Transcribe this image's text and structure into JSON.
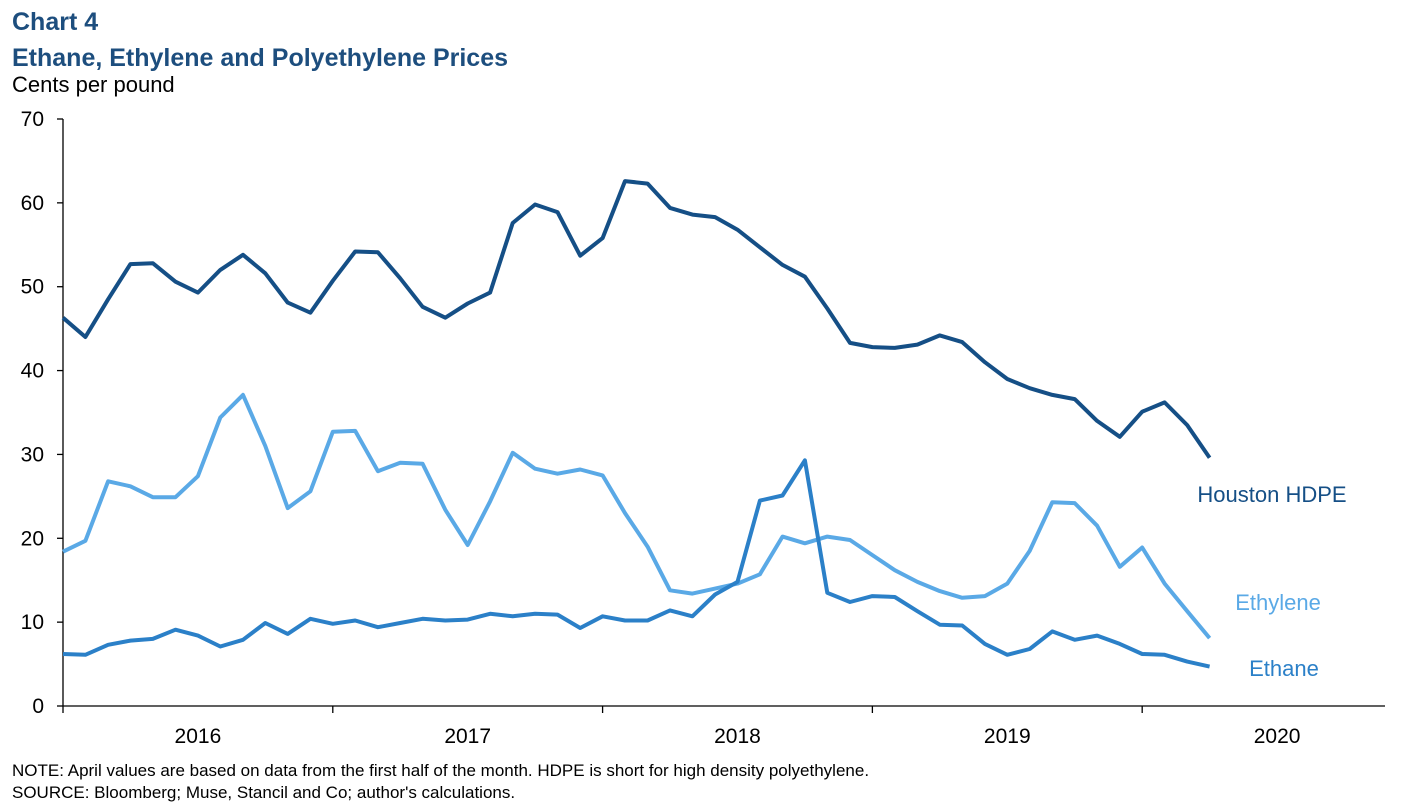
{
  "chart_data": {
    "type": "line",
    "title": "Chart 4",
    "subtitle": "Ethane, Ethylene and Polyethylene Prices",
    "y_label": "Cents per pound",
    "note": "NOTE: April values are based on data from the first half of the month. HDPE is short for high density polyethylene.",
    "source": "SOURCE: Bloomberg; Muse, Stancil and Co; author's calculations.",
    "x": [
      2016,
      2016.083,
      2016.167,
      2016.25,
      2016.333,
      2016.417,
      2016.5,
      2016.583,
      2016.667,
      2016.75,
      2016.833,
      2016.917,
      2017,
      2017.083,
      2017.167,
      2017.25,
      2017.333,
      2017.417,
      2017.5,
      2017.583,
      2017.667,
      2017.75,
      2017.833,
      2017.917,
      2018,
      2018.083,
      2018.167,
      2018.25,
      2018.333,
      2018.417,
      2018.5,
      2018.583,
      2018.667,
      2018.75,
      2018.833,
      2018.917,
      2019,
      2019.083,
      2019.167,
      2019.25,
      2019.333,
      2019.417,
      2019.5,
      2019.583,
      2019.667,
      2019.75,
      2019.833,
      2019.917,
      2020,
      2020.083,
      2020.167,
      2020.25
    ],
    "xlim": [
      2016,
      2020.9
    ],
    "xticks": [
      {
        "value": 2016.5,
        "label": "2016"
      },
      {
        "value": 2017.5,
        "label": "2017"
      },
      {
        "value": 2018.5,
        "label": "2018"
      },
      {
        "value": 2019.5,
        "label": "2019"
      },
      {
        "value": 2020.5,
        "label": "2020"
      }
    ],
    "xtick_marks": [
      2016,
      2017,
      2018,
      2019,
      2020
    ],
    "ylim": [
      0,
      70
    ],
    "yticks": [
      0,
      10,
      20,
      30,
      40,
      50,
      60,
      70
    ],
    "series": [
      {
        "name": "Houston HDPE",
        "color": "#154f86",
        "values": [
          46.3,
          44,
          48.5,
          52.7,
          52.8,
          50.6,
          49.3,
          52,
          53.8,
          51.6,
          48.1,
          46.9,
          50.7,
          54.2,
          54.1,
          51,
          47.6,
          46.3,
          48,
          49.3,
          57.6,
          59.8,
          58.9,
          53.7,
          55.8,
          62.6,
          62.3,
          59.4,
          58.6,
          58.3,
          56.8,
          54.7,
          52.6,
          51.2,
          47.4,
          43.3,
          42.8,
          42.7,
          43.1,
          44.2,
          43.4,
          41,
          39,
          37.9,
          37.1,
          36.6,
          34,
          32.1,
          35.1,
          36.2,
          33.5,
          29.6
        ]
      },
      {
        "name": "Ethylene",
        "color": "#5aa9e6",
        "values": [
          18.4,
          19.7,
          26.8,
          26.2,
          24.9,
          24.9,
          27.4,
          34.4,
          37.1,
          31,
          23.6,
          25.6,
          32.7,
          32.8,
          28,
          29,
          28.9,
          23.4,
          19.2,
          24.4,
          30.2,
          28.3,
          27.7,
          28.2,
          27.5,
          23,
          19,
          13.8,
          13.4,
          14,
          14.6,
          15.7,
          20.2,
          19.4,
          20.2,
          19.8,
          18,
          16.2,
          14.8,
          13.7,
          12.9,
          13.1,
          14.6,
          18.5,
          24.3,
          24.2,
          21.5,
          16.6,
          18.9,
          14.6,
          11.3,
          8.1
        ]
      },
      {
        "name": "Ethane",
        "color": "#2b80c8",
        "values": [
          6.2,
          6.1,
          7.3,
          7.8,
          8,
          9.1,
          8.4,
          7.1,
          7.9,
          9.9,
          8.6,
          10.4,
          9.8,
          10.2,
          9.4,
          9.9,
          10.4,
          10.2,
          10.3,
          11,
          10.7,
          11,
          10.9,
          9.3,
          10.7,
          10.2,
          10.2,
          11.4,
          10.7,
          13.3,
          14.8,
          24.5,
          25.1,
          29.3,
          13.5,
          12.4,
          13.1,
          13,
          11.3,
          9.7,
          9.6,
          7.4,
          6.1,
          6.8,
          8.9,
          7.9,
          8.4,
          7.4,
          6.2,
          6.1,
          5.3,
          4.7
        ]
      }
    ]
  }
}
